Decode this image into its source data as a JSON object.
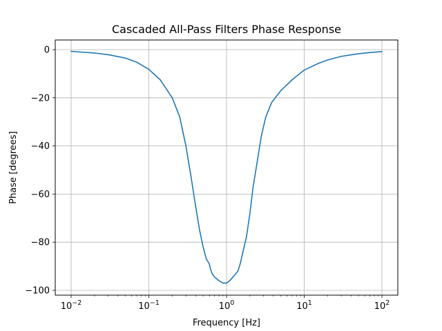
{
  "chart_data": {
    "type": "line",
    "title": "Cascaded All-Pass Filters Phase Response",
    "xlabel": "Frequency [Hz]",
    "ylabel": "Phase [degrees]",
    "xscale": "log",
    "xlim": [
      0.01,
      100
    ],
    "ylim": [
      -100,
      0
    ],
    "grid": true,
    "x_ticks": [
      {
        "value": 0.01,
        "base": "10",
        "exp": "−2"
      },
      {
        "value": 0.1,
        "base": "10",
        "exp": "−1"
      },
      {
        "value": 1,
        "base": "10",
        "exp": "0"
      },
      {
        "value": 10,
        "base": "10",
        "exp": "1"
      },
      {
        "value": 100,
        "base": "10",
        "exp": "2"
      }
    ],
    "y_ticks": [
      {
        "value": 0,
        "label": "0"
      },
      {
        "value": -20,
        "label": "−20"
      },
      {
        "value": -40,
        "label": "−40"
      },
      {
        "value": -60,
        "label": "−60"
      },
      {
        "value": -80,
        "label": "−80"
      },
      {
        "value": -100,
        "label": "−100"
      }
    ],
    "series": [
      {
        "color": "#1f77b4",
        "x": [
          0.01,
          0.02,
          0.03,
          0.05,
          0.07,
          0.1,
          0.14,
          0.2,
          0.25,
          0.3,
          0.35,
          0.4,
          0.45,
          0.5,
          0.55,
          0.6,
          0.62,
          0.65,
          0.7,
          0.8,
          0.9,
          1.0,
          1.1,
          1.25,
          1.4,
          1.5,
          1.55,
          1.6,
          1.8,
          2.0,
          2.2,
          2.5,
          2.8,
          3.2,
          3.8,
          5.0,
          7.0,
          10.0,
          15.0,
          20.0,
          30.0,
          50.0,
          70.0,
          100.0
        ],
        "y": [
          -0.7,
          -1.4,
          -2.1,
          -3.5,
          -5.2,
          -8.2,
          -12.5,
          -20.0,
          -28.0,
          -40.0,
          -53.0,
          -65.0,
          -75.0,
          -82.0,
          -87.0,
          -89.0,
          -91.0,
          -93.0,
          -94.5,
          -96.0,
          -97.0,
          -97.0,
          -96.0,
          -94.0,
          -92.0,
          -89.0,
          -87.0,
          -85.0,
          -78.0,
          -68.0,
          -57.0,
          -46.0,
          -36.0,
          -28.0,
          -22.0,
          -17.0,
          -12.5,
          -8.5,
          -5.8,
          -4.3,
          -2.8,
          -1.7,
          -1.2,
          -0.8
        ]
      }
    ]
  }
}
